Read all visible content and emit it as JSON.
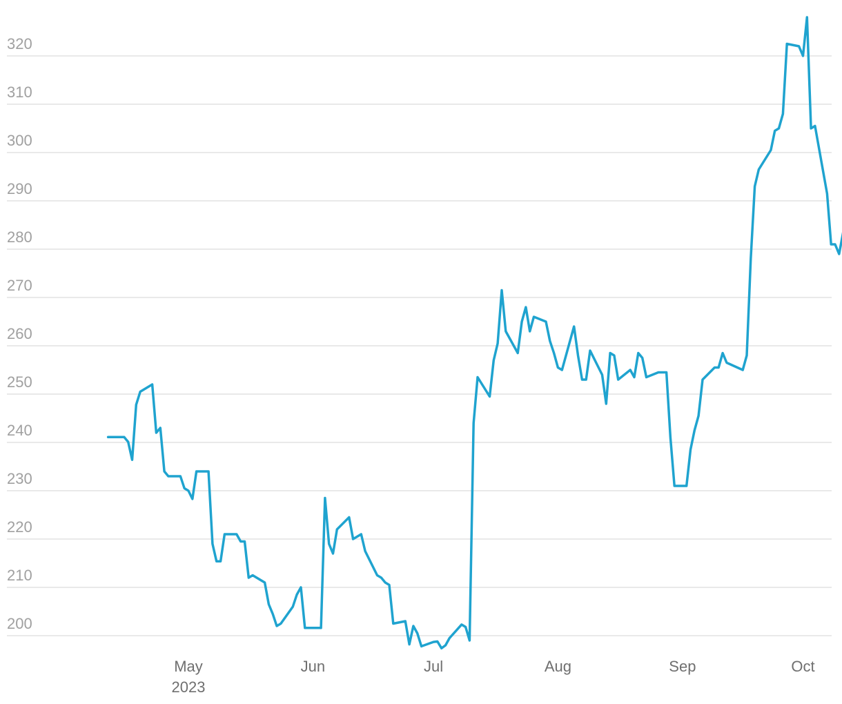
{
  "chart_data": {
    "type": "line",
    "title": "",
    "xlabel": "",
    "ylabel": "",
    "ylim": [
      200,
      320
    ],
    "y_ticks": [
      200,
      210,
      220,
      230,
      240,
      250,
      260,
      270,
      280,
      290,
      300,
      310,
      320
    ],
    "xlim": [
      "2023-04-03",
      "2023-10-10"
    ],
    "x_ticks": [
      {
        "date": "2023-05-01",
        "label": "May",
        "sublabel": "2023"
      },
      {
        "date": "2023-06-01",
        "label": "Jun",
        "sublabel": ""
      },
      {
        "date": "2023-07-01",
        "label": "Jul",
        "sublabel": ""
      },
      {
        "date": "2023-08-01",
        "label": "Aug",
        "sublabel": ""
      },
      {
        "date": "2023-09-01",
        "label": "Sep",
        "sublabel": ""
      },
      {
        "date": "2023-10-01",
        "label": "Oct",
        "sublabel": ""
      }
    ],
    "grid": true,
    "colors": {
      "line": "#1fa3cf",
      "grid": "#e2e2e2",
      "tick": "#a0a0a0",
      "xtick": "#6f6f6f"
    },
    "series": [
      {
        "points": [
          [
            "2023-04-11",
            241.1
          ],
          [
            "2023-04-12",
            241.1
          ],
          [
            "2023-04-13",
            241.1
          ],
          [
            "2023-04-14",
            241.1
          ],
          [
            "2023-04-15",
            241.1
          ],
          [
            "2023-04-16",
            240.1
          ],
          [
            "2023-04-17",
            236.4
          ],
          [
            "2023-04-18",
            247.8
          ],
          [
            "2023-04-19",
            250.5
          ],
          [
            "2023-04-22",
            252.0
          ],
          [
            "2023-04-23",
            242.0
          ],
          [
            "2023-04-24",
            243.0
          ],
          [
            "2023-04-25",
            234.0
          ],
          [
            "2023-04-26",
            233.0
          ],
          [
            "2023-04-29",
            233.0
          ],
          [
            "2023-04-30",
            230.5
          ],
          [
            "2023-05-01",
            230.0
          ],
          [
            "2023-05-02",
            228.3
          ],
          [
            "2023-05-03",
            234.0
          ],
          [
            "2023-05-06",
            234.0
          ],
          [
            "2023-05-07",
            219.0
          ],
          [
            "2023-05-08",
            215.4
          ],
          [
            "2023-05-09",
            215.4
          ],
          [
            "2023-05-10",
            221.0
          ],
          [
            "2023-05-13",
            221.0
          ],
          [
            "2023-05-14",
            219.5
          ],
          [
            "2023-05-15",
            219.5
          ],
          [
            "2023-05-16",
            212.0
          ],
          [
            "2023-05-17",
            212.5
          ],
          [
            "2023-05-20",
            211.0
          ],
          [
            "2023-05-21",
            206.5
          ],
          [
            "2023-05-22",
            204.5
          ],
          [
            "2023-05-23",
            202.0
          ],
          [
            "2023-05-24",
            202.5
          ],
          [
            "2023-05-27",
            206.0
          ],
          [
            "2023-05-28",
            208.5
          ],
          [
            "2023-05-29",
            210.0
          ],
          [
            "2023-05-30",
            201.6
          ],
          [
            "2023-06-03",
            201.6
          ],
          [
            "2023-06-04",
            228.5
          ],
          [
            "2023-06-05",
            219.0
          ],
          [
            "2023-06-06",
            217.0
          ],
          [
            "2023-06-07",
            222.0
          ],
          [
            "2023-06-10",
            224.5
          ],
          [
            "2023-06-11",
            220.0
          ],
          [
            "2023-06-13",
            221.0
          ],
          [
            "2023-06-14",
            217.5
          ],
          [
            "2023-06-17",
            212.5
          ],
          [
            "2023-06-18",
            212.0
          ],
          [
            "2023-06-19",
            211.0
          ],
          [
            "2023-06-20",
            210.5
          ],
          [
            "2023-06-21",
            202.5
          ],
          [
            "2023-06-24",
            203.0
          ],
          [
            "2023-06-25",
            198.2
          ],
          [
            "2023-06-26",
            202.0
          ],
          [
            "2023-06-27",
            200.5
          ],
          [
            "2023-06-28",
            197.8
          ],
          [
            "2023-07-01",
            198.7
          ],
          [
            "2023-07-02",
            198.8
          ],
          [
            "2023-07-03",
            197.4
          ],
          [
            "2023-07-04",
            198.0
          ],
          [
            "2023-07-05",
            199.5
          ],
          [
            "2023-07-08",
            202.3
          ],
          [
            "2023-07-09",
            201.8
          ],
          [
            "2023-07-10",
            199.0
          ],
          [
            "2023-07-11",
            244.0
          ],
          [
            "2023-07-12",
            253.5
          ],
          [
            "2023-07-15",
            249.5
          ],
          [
            "2023-07-16",
            257.0
          ],
          [
            "2023-07-17",
            260.5
          ],
          [
            "2023-07-18",
            271.5
          ],
          [
            "2023-07-19",
            263.0
          ],
          [
            "2023-07-22",
            258.5
          ],
          [
            "2023-07-23",
            265.0
          ],
          [
            "2023-07-24",
            268.0
          ],
          [
            "2023-07-25",
            263.0
          ],
          [
            "2023-07-26",
            266.0
          ],
          [
            "2023-07-29",
            265.0
          ],
          [
            "2023-07-30",
            261.0
          ],
          [
            "2023-07-31",
            258.5
          ],
          [
            "2023-08-01",
            255.5
          ],
          [
            "2023-08-02",
            255.0
          ],
          [
            "2023-08-05",
            264.0
          ],
          [
            "2023-08-06",
            258.0
          ],
          [
            "2023-08-07",
            253.0
          ],
          [
            "2023-08-08",
            253.0
          ],
          [
            "2023-08-09",
            259.0
          ],
          [
            "2023-08-12",
            254.0
          ],
          [
            "2023-08-13",
            248.0
          ],
          [
            "2023-08-14",
            258.5
          ],
          [
            "2023-08-15",
            258.0
          ],
          [
            "2023-08-16",
            253.0
          ],
          [
            "2023-08-19",
            255.0
          ],
          [
            "2023-08-20",
            253.5
          ],
          [
            "2023-08-21",
            258.5
          ],
          [
            "2023-08-22",
            257.5
          ],
          [
            "2023-08-23",
            253.5
          ],
          [
            "2023-08-26",
            254.5
          ],
          [
            "2023-08-28",
            254.5
          ],
          [
            "2023-08-29",
            241.0
          ],
          [
            "2023-08-30",
            231.0
          ],
          [
            "2023-09-02",
            231.0
          ],
          [
            "2023-09-03",
            238.5
          ],
          [
            "2023-09-04",
            242.5
          ],
          [
            "2023-09-05",
            245.5
          ],
          [
            "2023-09-06",
            253.0
          ],
          [
            "2023-09-09",
            255.5
          ],
          [
            "2023-09-10",
            255.5
          ],
          [
            "2023-09-11",
            258.5
          ],
          [
            "2023-09-12",
            256.5
          ],
          [
            "2023-09-16",
            255.0
          ],
          [
            "2023-09-17",
            258.0
          ],
          [
            "2023-09-18",
            278.0
          ],
          [
            "2023-09-19",
            293.0
          ],
          [
            "2023-09-20",
            296.5
          ],
          [
            "2023-09-23",
            300.5
          ],
          [
            "2023-09-24",
            304.5
          ],
          [
            "2023-09-25",
            305.0
          ],
          [
            "2023-09-26",
            308.0
          ],
          [
            "2023-09-27",
            322.5
          ],
          [
            "2023-09-30",
            322.0
          ],
          [
            "2023-10-01",
            320.0
          ],
          [
            "2023-10-02",
            328.0
          ],
          [
            "2023-10-03",
            305.0
          ],
          [
            "2023-10-04",
            305.5
          ],
          [
            "2023-10-07",
            291.5
          ],
          [
            "2023-10-08",
            281.0
          ],
          [
            "2023-10-09",
            281.0
          ],
          [
            "2023-10-10",
            279.0
          ],
          [
            "2023-10-11",
            283.5
          ]
        ]
      }
    ]
  }
}
